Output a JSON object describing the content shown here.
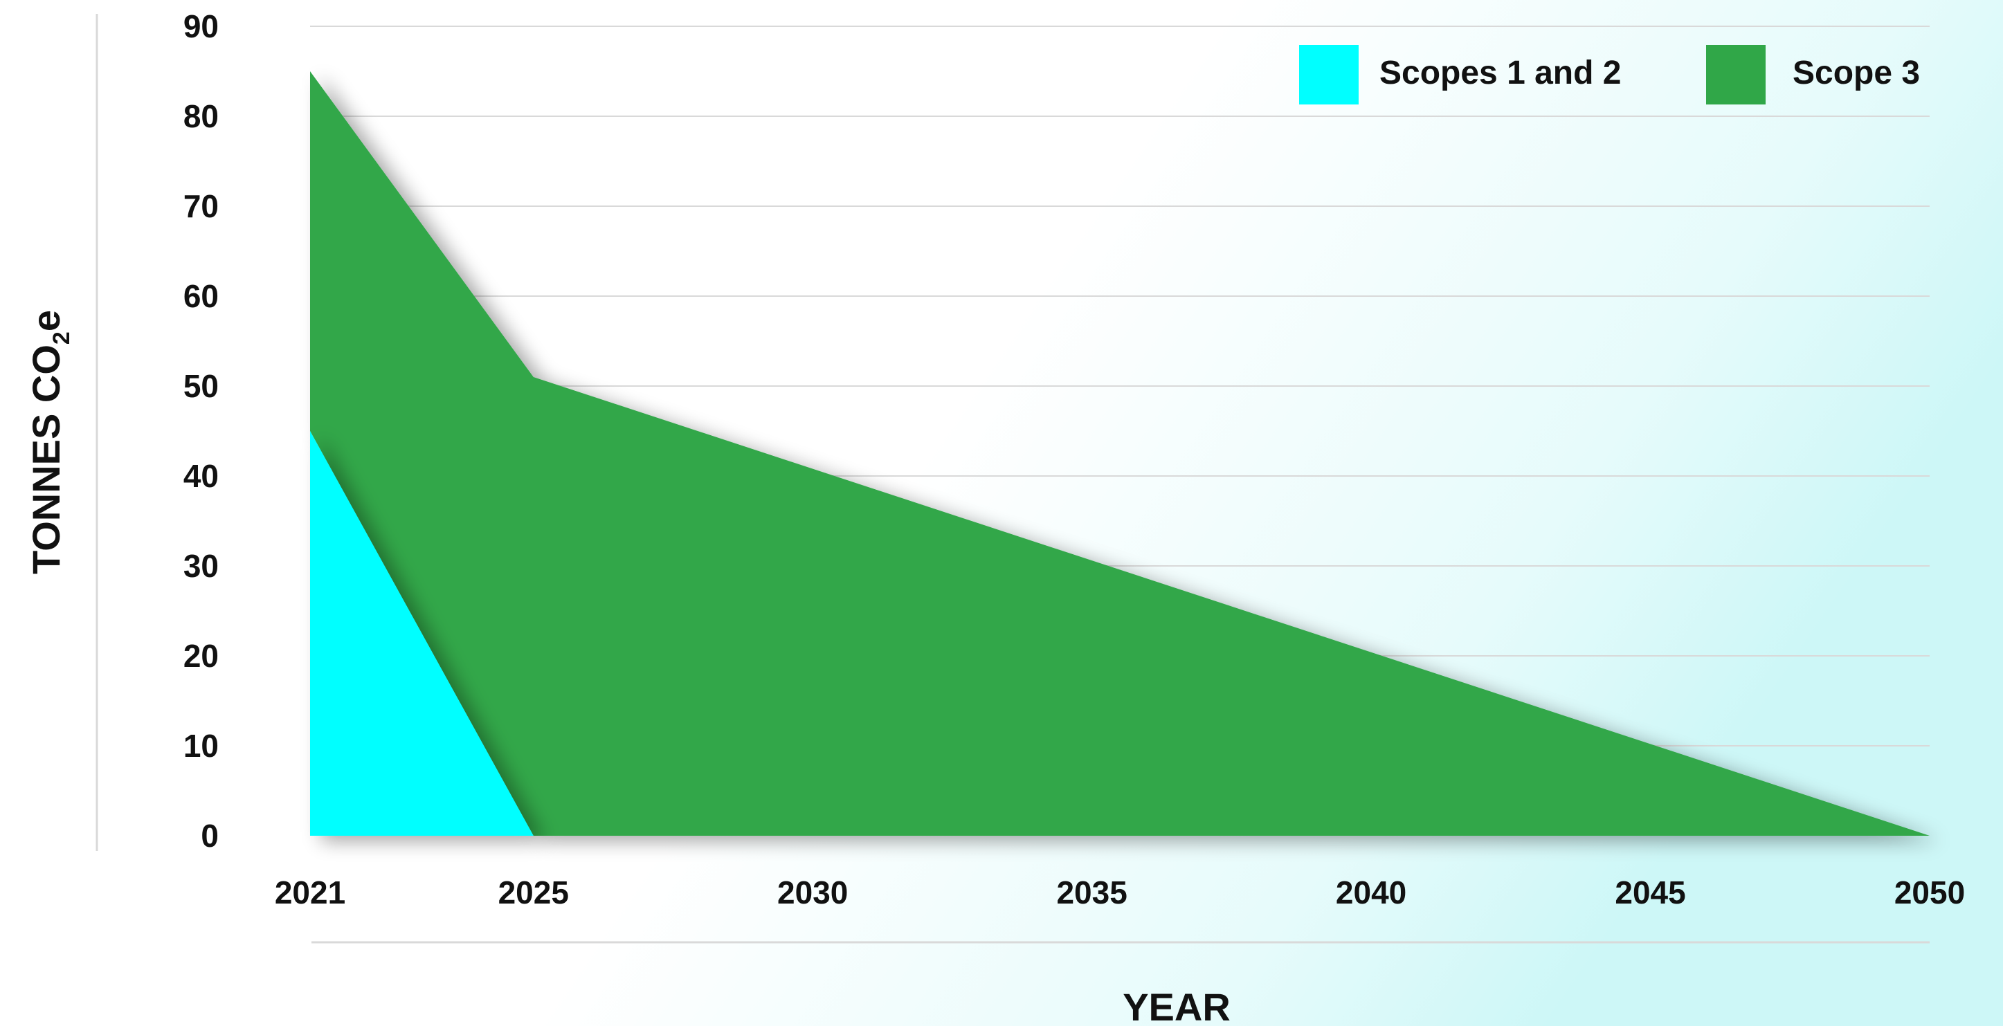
{
  "colors": {
    "scopes_1_2": "#00ffff",
    "scope_3": "#30a748",
    "gridline": "#d9d9d9",
    "text": "#111111"
  },
  "chart_data": {
    "type": "area",
    "stacked": true,
    "xlabel": "YEAR",
    "ylabel": "TONNES CO",
    "ylabel_subscript": "2",
    "ylabel_suffix": "e",
    "x_ticks": [
      "2021",
      "2025",
      "2030",
      "2035",
      "2040",
      "2045",
      "2050"
    ],
    "y_ticks": [
      "0",
      "10",
      "20",
      "30",
      "40",
      "50",
      "60",
      "70",
      "80",
      "90"
    ],
    "xlim": [
      2021,
      2050
    ],
    "ylim": [
      0,
      90
    ],
    "grid": true,
    "legend_position": "top-right",
    "series": [
      {
        "name": "Scopes 1 and 2",
        "color": "#00ffff",
        "points": [
          {
            "x": 2021,
            "y": 45
          },
          {
            "x": 2025,
            "y": 0
          },
          {
            "x": 2050,
            "y": 0
          }
        ]
      },
      {
        "name": "Scope 3",
        "color": "#30a748",
        "points": [
          {
            "x": 2021,
            "y": 40
          },
          {
            "x": 2025,
            "y": 51
          },
          {
            "x": 2050,
            "y": 0
          }
        ]
      }
    ]
  }
}
